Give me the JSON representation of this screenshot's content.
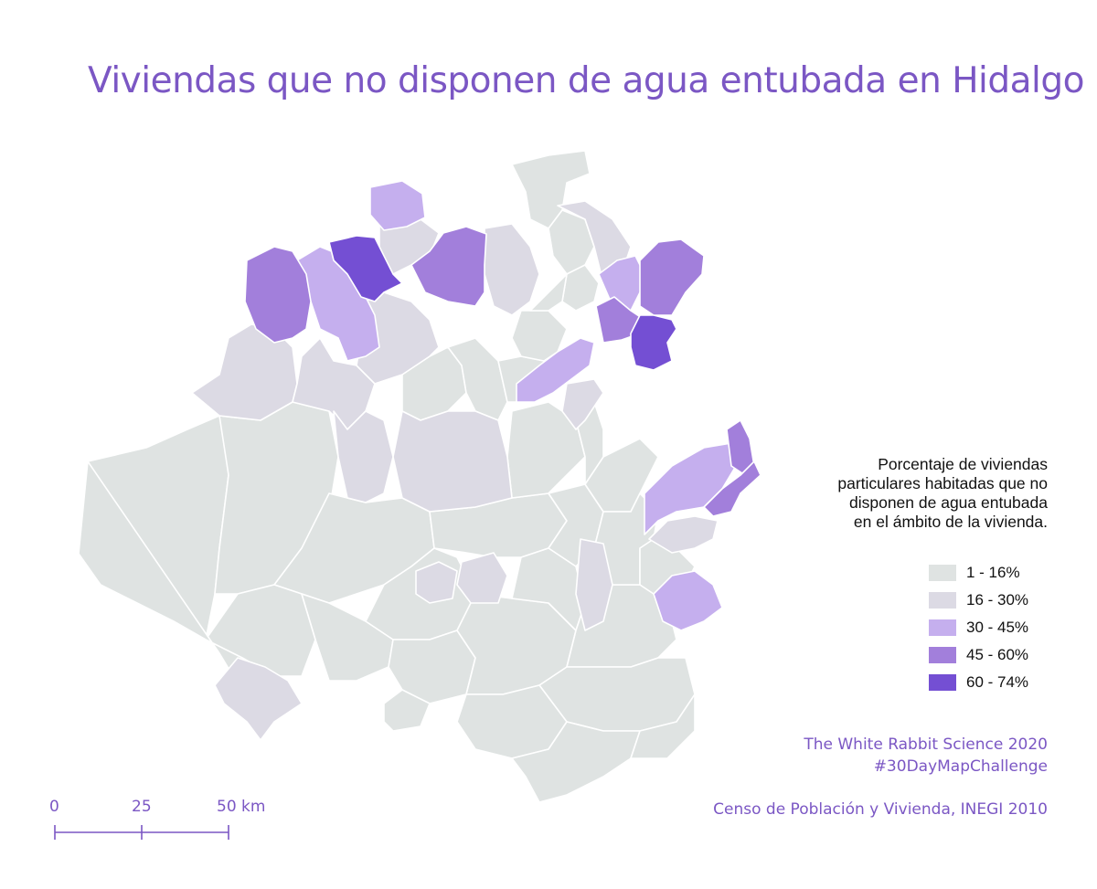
{
  "title": "Viviendas que no disponen de agua entubada en Hidalgo",
  "legend": {
    "description_lines": [
      "Porcentaje de viviendas",
      "particulares habitadas que no",
      "disponen de agua entubada",
      "en el ámbito de la vivienda."
    ],
    "classes": [
      {
        "label": "1 - 16%",
        "color": "#dfe3e2"
      },
      {
        "label": "16 - 30%",
        "color": "#dcdae4"
      },
      {
        "label": "30 - 45%",
        "color": "#c5afee"
      },
      {
        "label": "45 - 60%",
        "color": "#a27fdb"
      },
      {
        "label": "60 - 74%",
        "color": "#744fd3"
      }
    ]
  },
  "credits": {
    "author": "The White Rabbit Science 2020",
    "hashtag": "#30DayMapChallenge",
    "source": "Censo de Población y Vivienda,  INEGI 2010"
  },
  "scale_bar": {
    "labels": [
      "0",
      "25",
      "50 km"
    ],
    "color": "#7b57c4"
  },
  "map": {
    "state": "Hidalgo",
    "municipalities_by_class": {
      "1 - 16%": 56,
      "16 - 30%": 13,
      "30 - 45%": 7,
      "45 - 60%": 6,
      "60 - 74%": 2
    }
  }
}
